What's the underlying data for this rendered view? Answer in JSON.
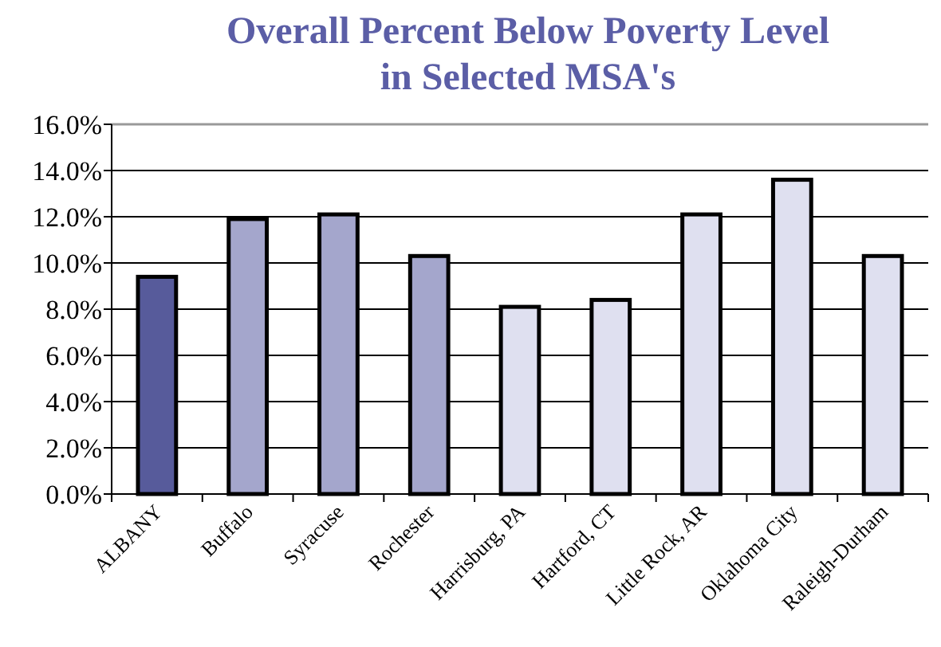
{
  "chart_data": {
    "type": "bar",
    "title": "Overall Percent Below Poverty Level\nin Selected MSA's",
    "categories": [
      "ALBANY",
      "Buffalo",
      "Syracuse",
      "Rochester",
      "Harrisburg, PA",
      "Hartford, CT",
      "Little Rock, AR",
      "Oklahoma City",
      "Raleigh-Durham"
    ],
    "values": [
      9.4,
      11.9,
      12.1,
      10.3,
      8.1,
      8.4,
      12.1,
      13.6,
      10.3
    ],
    "colors": [
      "#575b9b",
      "#a4a6cc",
      "#a4a6cc",
      "#a4a6cc",
      "#dfe0f0",
      "#dfe0f0",
      "#dfe0f0",
      "#dfe0f0",
      "#dfe0f0"
    ],
    "ylim": [
      0,
      16
    ],
    "yticks": [
      {
        "value": 0,
        "label": "0.0%"
      },
      {
        "value": 2,
        "label": "2.0%"
      },
      {
        "value": 4,
        "label": "4.0%"
      },
      {
        "value": 6,
        "label": "6.0%"
      },
      {
        "value": 8,
        "label": "8.0%"
      },
      {
        "value": 10,
        "label": "10.0%"
      },
      {
        "value": 12,
        "label": "12.0%"
      },
      {
        "value": 14,
        "label": "14.0%"
      },
      {
        "value": 16,
        "label": "16.0%"
      }
    ],
    "grid": "y"
  }
}
